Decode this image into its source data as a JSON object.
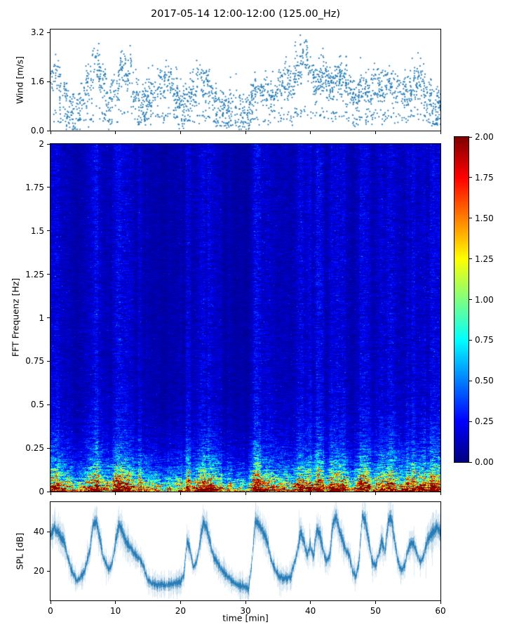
{
  "title": "2017-05-14 12:00-12:00 (125.00_Hz)",
  "chart_data": [
    {
      "type": "scatter",
      "name": "wind-speed",
      "ylabel": "Wind [m/s]",
      "ylim": [
        0,
        3.3
      ],
      "yticks": [
        0.0,
        1.6,
        3.2
      ],
      "ytick_labels": [
        "0.0",
        "1.6",
        "3.2"
      ],
      "xlim": [
        0,
        60
      ],
      "marker_color": "#1f77b4",
      "x_start_min": 0,
      "x_step_min": 1,
      "mean_wind": [
        1.5,
        1.8,
        1.2,
        0.8,
        0.6,
        1.0,
        1.4,
        2.2,
        1.6,
        0.9,
        1.2,
        2.1,
        1.9,
        1.2,
        1.0,
        1.1,
        1.3,
        1.5,
        1.7,
        1.3,
        0.9,
        1.0,
        1.2,
        1.6,
        1.5,
        1.1,
        0.8,
        0.7,
        0.9,
        0.8,
        0.7,
        1.0,
        1.3,
        1.2,
        1.1,
        1.4,
        1.6,
        1.5,
        2.0,
        2.4,
        1.8,
        1.5,
        1.9,
        1.4,
        1.7,
        1.8,
        1.3,
        1.0,
        1.4,
        1.2,
        1.5,
        1.3,
        1.6,
        1.4,
        1.1,
        1.3,
        1.5,
        1.7,
        1.2,
        0.9,
        0.8
      ]
    },
    {
      "type": "heatmap",
      "name": "fft-spectrogram",
      "ylabel": "FFT Frequenz [Hz]",
      "ylim": [
        0,
        2
      ],
      "yticks": [
        0,
        0.25,
        0.5,
        0.75,
        1,
        1.25,
        1.5,
        1.75,
        2
      ],
      "ytick_labels": [
        "0",
        "0.25",
        "0.5",
        "0.75",
        "1",
        "1.25",
        "1.5",
        "1.75",
        "2"
      ],
      "xlim": [
        0,
        60
      ],
      "colormap": "jet",
      "clim": [
        0,
        2
      ],
      "colorbar_ticks": [
        0,
        0.25,
        0.5,
        0.75,
        1,
        1.25,
        1.5,
        1.75,
        2
      ],
      "colorbar_tick_labels": [
        "0.00",
        "0.25",
        "0.50",
        "0.75",
        "1.00",
        "1.25",
        "1.50",
        "1.75",
        "2.00"
      ],
      "freq_profile": {
        "base": 0.2,
        "amp1": 1.4,
        "scale1": 0.13,
        "amp2": 1.8,
        "scale2": 0.045
      }
    },
    {
      "type": "line",
      "name": "spl",
      "ylabel": "SPL [dB]",
      "xlabel": "time [min]",
      "ylim": [
        5,
        55
      ],
      "yticks": [
        20,
        40
      ],
      "ytick_labels": [
        "20",
        "40"
      ],
      "xlim": [
        0,
        60
      ],
      "xticks": [
        0,
        10,
        20,
        30,
        40,
        50,
        60
      ],
      "xtick_labels": [
        "0",
        "10",
        "20",
        "30",
        "40",
        "50",
        "60"
      ],
      "line_color": "#1f77b4",
      "x": [
        0,
        0.5,
        1,
        2,
        3,
        4,
        5,
        6,
        6.5,
        7,
        7.5,
        8,
        9,
        9.5,
        10,
        10.5,
        11,
        11.5,
        12,
        13,
        14,
        15,
        16,
        17,
        18,
        19,
        20,
        20.5,
        21,
        21.5,
        22,
        22.5,
        23,
        23.5,
        24,
        24.5,
        25,
        26,
        27,
        28,
        29,
        30,
        30.5,
        31,
        31.5,
        32,
        33,
        33.5,
        34,
        35,
        36,
        37,
        38,
        38.5,
        39,
        39.5,
        40,
        40.5,
        41,
        41.5,
        42,
        42.5,
        43,
        43.5,
        44,
        44.5,
        45,
        45.5,
        46,
        46.5,
        47,
        47.5,
        48,
        48.5,
        49,
        49.5,
        50,
        50.5,
        51,
        51.5,
        52,
        52.5,
        53,
        53.5,
        54,
        54.5,
        55,
        55.5,
        56,
        56.5,
        57,
        57.5,
        58,
        58.5,
        59,
        59.5,
        60
      ],
      "y": [
        38,
        42,
        40,
        35,
        22,
        15,
        18,
        30,
        43,
        45,
        38,
        28,
        20,
        25,
        35,
        43,
        40,
        35,
        33,
        28,
        25,
        15,
        13,
        13,
        13,
        14,
        14,
        18,
        35,
        30,
        22,
        25,
        35,
        44,
        42,
        35,
        28,
        22,
        18,
        15,
        13,
        12,
        11,
        25,
        46,
        44,
        38,
        33,
        25,
        18,
        16,
        17,
        30,
        40,
        35,
        28,
        33,
        27,
        42,
        38,
        30,
        25,
        28,
        45,
        47,
        40,
        35,
        30,
        28,
        20,
        17,
        25,
        48,
        45,
        35,
        25,
        22,
        28,
        35,
        30,
        45,
        47,
        35,
        25,
        20,
        22,
        30,
        35,
        33,
        28,
        24,
        28,
        35,
        38,
        40,
        42,
        40
      ]
    }
  ]
}
